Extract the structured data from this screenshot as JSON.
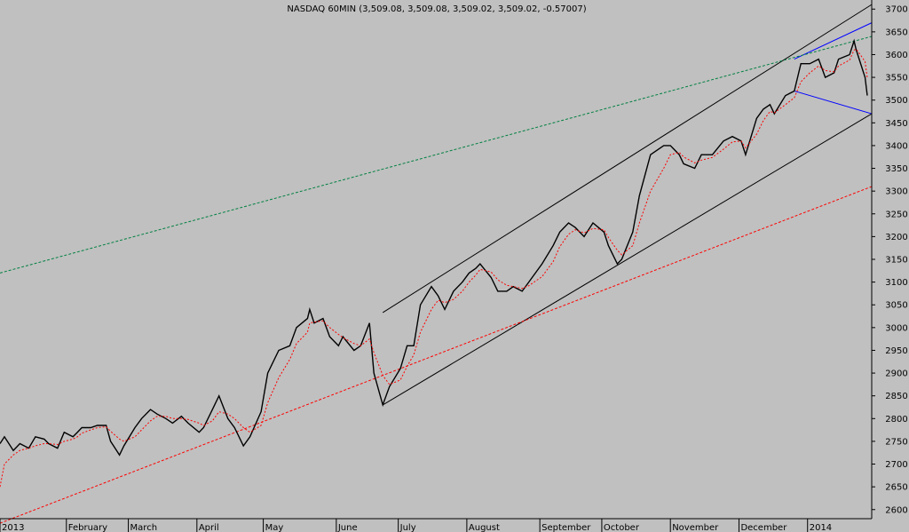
{
  "chart_data": {
    "type": "line",
    "title": "NASDAQ 60MIN (3,509.08, 3,509.08, 3,509.02, 3,509.02, -0.57007)",
    "xlabel": "",
    "ylabel": "",
    "ylim": [
      2580,
      3720
    ],
    "y_ticks": [
      2600,
      2650,
      2700,
      2750,
      2800,
      2850,
      2900,
      2950,
      3000,
      3050,
      3100,
      3150,
      3200,
      3250,
      3300,
      3350,
      3400,
      3450,
      3500,
      3550,
      3600,
      3650,
      3700
    ],
    "x_domain": [
      "2013-01-02",
      "2014-01-31"
    ],
    "x_ticks": [
      {
        "date": "2013-01-02",
        "label": "2013"
      },
      {
        "date": "2013-02-01",
        "label": "February"
      },
      {
        "date": "2013-03-01",
        "label": "March"
      },
      {
        "date": "2013-04-01",
        "label": "April"
      },
      {
        "date": "2013-05-01",
        "label": "May"
      },
      {
        "date": "2013-06-03",
        "label": "June"
      },
      {
        "date": "2013-07-01",
        "label": "July"
      },
      {
        "date": "2013-08-01",
        "label": "August"
      },
      {
        "date": "2013-09-03",
        "label": "September"
      },
      {
        "date": "2013-10-01",
        "label": "October"
      },
      {
        "date": "2013-11-01",
        "label": "November"
      },
      {
        "date": "2013-12-02",
        "label": "December"
      },
      {
        "date": "2014-01-02",
        "label": "2014"
      }
    ],
    "grid": false,
    "series": [
      {
        "color": "#000000",
        "x": [
          "2013-01-02",
          "2013-01-04",
          "2013-01-08",
          "2013-01-11",
          "2013-01-15",
          "2013-01-18",
          "2013-01-22",
          "2013-01-24",
          "2013-01-28",
          "2013-01-31",
          "2013-02-04",
          "2013-02-06",
          "2013-02-08",
          "2013-02-12",
          "2013-02-15",
          "2013-02-19",
          "2013-02-21",
          "2013-02-25",
          "2013-02-27",
          "2013-03-04",
          "2013-03-07",
          "2013-03-11",
          "2013-03-14",
          "2013-03-18",
          "2013-03-21",
          "2013-03-25",
          "2013-03-28",
          "2013-04-02",
          "2013-04-04",
          "2013-04-08",
          "2013-04-11",
          "2013-04-15",
          "2013-04-18",
          "2013-04-22",
          "2013-04-25",
          "2013-04-30",
          "2013-05-03",
          "2013-05-08",
          "2013-05-13",
          "2013-05-16",
          "2013-05-21",
          "2013-05-22",
          "2013-05-24",
          "2013-05-28",
          "2013-05-31",
          "2013-06-04",
          "2013-06-06",
          "2013-06-11",
          "2013-06-14",
          "2013-06-18",
          "2013-06-20",
          "2013-06-24",
          "2013-06-27",
          "2013-07-02",
          "2013-07-05",
          "2013-07-08",
          "2013-07-11",
          "2013-07-16",
          "2013-07-19",
          "2013-07-22",
          "2013-07-26",
          "2013-07-30",
          "2013-08-02",
          "2013-08-05",
          "2013-08-07",
          "2013-08-12",
          "2013-08-15",
          "2013-08-19",
          "2013-08-22",
          "2013-08-26",
          "2013-08-29",
          "2013-09-04",
          "2013-09-09",
          "2013-09-12",
          "2013-09-16",
          "2013-09-19",
          "2013-09-23",
          "2013-09-27",
          "2013-10-02",
          "2013-10-04",
          "2013-10-08",
          "2013-10-10",
          "2013-10-15",
          "2013-10-18",
          "2013-10-23",
          "2013-10-29",
          "2013-11-01",
          "2013-11-05",
          "2013-11-07",
          "2013-11-12",
          "2013-11-15",
          "2013-11-20",
          "2013-11-25",
          "2013-11-29",
          "2013-12-03",
          "2013-12-05",
          "2013-12-10",
          "2013-12-13",
          "2013-12-16",
          "2013-12-18",
          "2013-12-23",
          "2013-12-27",
          "2013-12-30",
          "2014-01-03",
          "2014-01-07",
          "2014-01-10",
          "2014-01-14",
          "2014-01-16",
          "2014-01-21",
          "2014-01-23",
          "2014-01-24",
          "2014-01-28",
          "2014-01-29"
        ],
        "values": [
          2745,
          2760,
          2730,
          2745,
          2735,
          2760,
          2755,
          2745,
          2735,
          2770,
          2760,
          2770,
          2780,
          2780,
          2785,
          2785,
          2750,
          2720,
          2740,
          2780,
          2800,
          2820,
          2810,
          2800,
          2790,
          2805,
          2790,
          2770,
          2780,
          2820,
          2850,
          2800,
          2780,
          2740,
          2760,
          2815,
          2900,
          2950,
          2960,
          3000,
          3020,
          3040,
          3010,
          3020,
          2980,
          2960,
          2980,
          2950,
          2960,
          3010,
          2900,
          2830,
          2870,
          2910,
          2960,
          2960,
          3050,
          3090,
          3070,
          3040,
          3080,
          3100,
          3120,
          3130,
          3140,
          3110,
          3080,
          3080,
          3090,
          3080,
          3100,
          3140,
          3180,
          3210,
          3230,
          3220,
          3200,
          3230,
          3210,
          3180,
          3140,
          3150,
          3210,
          3290,
          3380,
          3400,
          3400,
          3380,
          3360,
          3350,
          3380,
          3380,
          3410,
          3420,
          3410,
          3380,
          3460,
          3480,
          3490,
          3470,
          3510,
          3520,
          3580,
          3580,
          3590,
          3550,
          3560,
          3590,
          3600,
          3630,
          3610,
          3550,
          3510
        ]
      },
      {
        "color": "#ff0000",
        "dashed": true,
        "x": [
          "2013-01-02",
          "2013-01-04",
          "2013-01-08",
          "2013-01-11",
          "2013-01-15",
          "2013-01-18",
          "2013-01-22",
          "2013-01-24",
          "2013-01-28",
          "2013-01-31",
          "2013-02-04",
          "2013-02-06",
          "2013-02-08",
          "2013-02-12",
          "2013-02-15",
          "2013-02-19",
          "2013-02-21",
          "2013-02-25",
          "2013-02-27",
          "2013-03-04",
          "2013-03-07",
          "2013-03-11",
          "2013-03-14",
          "2013-03-18",
          "2013-03-21",
          "2013-03-25",
          "2013-03-28",
          "2013-04-02",
          "2013-04-04",
          "2013-04-08",
          "2013-04-11",
          "2013-04-15",
          "2013-04-18",
          "2013-04-22",
          "2013-04-25",
          "2013-04-30",
          "2013-05-03",
          "2013-05-08",
          "2013-05-13",
          "2013-05-16",
          "2013-05-21",
          "2013-05-22",
          "2013-05-24",
          "2013-05-28",
          "2013-05-31",
          "2013-06-04",
          "2013-06-06",
          "2013-06-11",
          "2013-06-14",
          "2013-06-18",
          "2013-06-20",
          "2013-06-24",
          "2013-06-27",
          "2013-07-02",
          "2013-07-05",
          "2013-07-08",
          "2013-07-11",
          "2013-07-16",
          "2013-07-19",
          "2013-07-22",
          "2013-07-26",
          "2013-07-30",
          "2013-08-02",
          "2013-08-05",
          "2013-08-07",
          "2013-08-12",
          "2013-08-15",
          "2013-08-19",
          "2013-08-22",
          "2013-08-26",
          "2013-08-29",
          "2013-09-04",
          "2013-09-09",
          "2013-09-12",
          "2013-09-16",
          "2013-09-19",
          "2013-09-23",
          "2013-09-27",
          "2013-10-02",
          "2013-10-04",
          "2013-10-08",
          "2013-10-10",
          "2013-10-15",
          "2013-10-18",
          "2013-10-23",
          "2013-10-29",
          "2013-11-01",
          "2013-11-05",
          "2013-11-07",
          "2013-11-12",
          "2013-11-15",
          "2013-11-20",
          "2013-11-25",
          "2013-11-29",
          "2013-12-03",
          "2013-12-05",
          "2013-12-10",
          "2013-12-13",
          "2013-12-16",
          "2013-12-18",
          "2013-12-23",
          "2013-12-27",
          "2013-12-30",
          "2014-01-03",
          "2014-01-07",
          "2014-01-10",
          "2014-01-14",
          "2014-01-16",
          "2014-01-21",
          "2014-01-23",
          "2014-01-24",
          "2014-01-28",
          "2014-01-29"
        ],
        "values": [
          2650,
          2700,
          2720,
          2730,
          2735,
          2740,
          2745,
          2745,
          2743,
          2750,
          2755,
          2760,
          2768,
          2775,
          2780,
          2782,
          2772,
          2755,
          2750,
          2760,
          2775,
          2795,
          2805,
          2805,
          2800,
          2800,
          2798,
          2790,
          2785,
          2795,
          2815,
          2810,
          2800,
          2780,
          2770,
          2785,
          2835,
          2890,
          2930,
          2965,
          2990,
          3010,
          3012,
          3015,
          3000,
          2985,
          2978,
          2965,
          2960,
          2975,
          2945,
          2895,
          2875,
          2885,
          2915,
          2940,
          2990,
          3040,
          3060,
          3055,
          3062,
          3080,
          3100,
          3115,
          3128,
          3122,
          3105,
          3093,
          3090,
          3086,
          3092,
          3112,
          3145,
          3178,
          3205,
          3215,
          3208,
          3218,
          3215,
          3198,
          3170,
          3160,
          3180,
          3230,
          3300,
          3350,
          3380,
          3385,
          3375,
          3362,
          3368,
          3374,
          3392,
          3408,
          3410,
          3395,
          3425,
          3455,
          3475,
          3472,
          3490,
          3505,
          3540,
          3560,
          3575,
          3565,
          3562,
          3575,
          3588,
          3610,
          3612,
          3585,
          3548
        ]
      }
    ],
    "trendlines": [
      {
        "color": "#000000",
        "style": "solid",
        "from": {
          "x": "2013-06-24",
          "y": 2830
        },
        "to": {
          "x": "2014-01-31",
          "y": 3470
        }
      },
      {
        "color": "#000000",
        "style": "solid",
        "from": {
          "x": "2013-06-24",
          "y": 3033
        },
        "to": {
          "x": "2014-01-31",
          "y": 3710
        }
      },
      {
        "color": "#0000ff",
        "style": "solid",
        "from": {
          "x": "2013-12-27",
          "y": 3590
        },
        "to": {
          "x": "2014-01-31",
          "y": 3670
        }
      },
      {
        "color": "#0000ff",
        "style": "solid",
        "from": {
          "x": "2013-12-27",
          "y": 3520
        },
        "to": {
          "x": "2014-01-31",
          "y": 3470
        }
      },
      {
        "color": "#008040",
        "style": "dashed",
        "from": {
          "x": "2013-01-02",
          "y": 3120
        },
        "to": {
          "x": "2014-01-31",
          "y": 3640
        }
      },
      {
        "color": "#ff0000",
        "style": "dashed",
        "from": {
          "x": "2013-01-02",
          "y": 2570
        },
        "to": {
          "x": "2014-01-31",
          "y": 3310
        }
      }
    ]
  }
}
